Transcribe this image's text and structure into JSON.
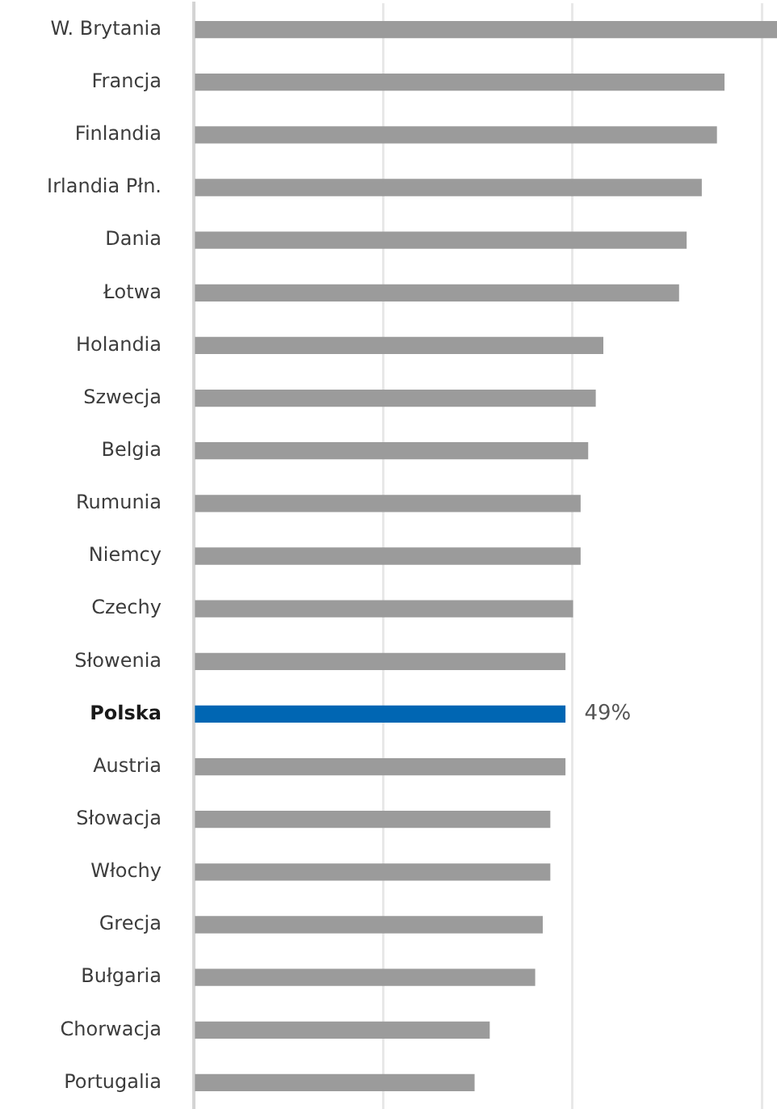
{
  "chart_data": {
    "type": "bar",
    "orientation": "horizontal",
    "categories": [
      "W. Brytania",
      "Francja",
      "Finlandia",
      "Irlandia Płn.",
      "Dania",
      "Łotwa",
      "Holandia",
      "Szwecja",
      "Belgia",
      "Rumunia",
      "Niemcy",
      "Czechy",
      "Słowenia",
      "Polska",
      "Austria",
      "Słowacja",
      "Włochy",
      "Grecja",
      "Bułgaria",
      "Chorwacja",
      "Portugalia"
    ],
    "values": [
      77,
      70,
      69,
      67,
      65,
      64,
      54,
      53,
      52,
      51,
      51,
      50,
      49,
      49,
      49,
      47,
      47,
      46,
      45,
      39,
      37
    ],
    "colors": [
      "#9b9b9b",
      "#9b9b9b",
      "#9b9b9b",
      "#9b9b9b",
      "#9b9b9b",
      "#9b9b9b",
      "#9b9b9b",
      "#9b9b9b",
      "#9b9b9b",
      "#9b9b9b",
      "#9b9b9b",
      "#9b9b9b",
      "#9b9b9b",
      "#0066b3",
      "#9b9b9b",
      "#9b9b9b",
      "#9b9b9b",
      "#9b9b9b",
      "#9b9b9b",
      "#9b9b9b",
      "#9b9b9b"
    ],
    "value_labels": [
      null,
      null,
      null,
      null,
      null,
      null,
      null,
      null,
      null,
      null,
      null,
      null,
      null,
      "49%",
      null,
      null,
      null,
      null,
      null,
      null,
      null
    ],
    "xlim": [
      0,
      77
    ],
    "xticks": [
      {
        "value": 0,
        "label": null
      },
      {
        "value": 25,
        "label": null
      },
      {
        "value": 50,
        "label": null
      },
      {
        "value": 75,
        "label": null
      }
    ],
    "grid": "x",
    "tick_labels": "y"
  }
}
